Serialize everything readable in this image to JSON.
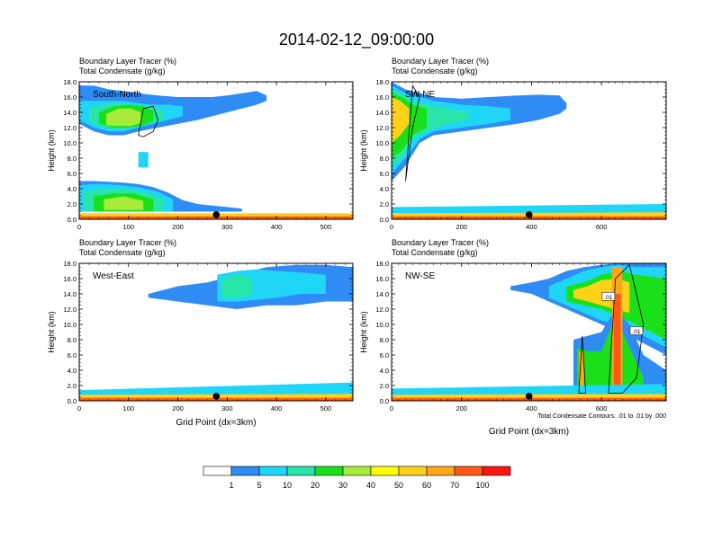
{
  "page_title": "2014-02-12_09:00:00",
  "panel_title_line1": "Boundary Layer Tracer   (%)",
  "panel_title_line2": "Total Condensate   (g/kg)",
  "y_axis_title": "Height (km)",
  "x_axis_title": "Grid Point (dx=3km)",
  "footnote": "Total Condensate Contours: .01 to .01 by .000",
  "y_ticks": [
    "0.0",
    "2.0",
    "4.0",
    "6.0",
    "8.0",
    "10.0",
    "12.0",
    "14.0",
    "16.0",
    "18.0"
  ],
  "colorbar": {
    "colors": [
      "#ffffff",
      "#2f8cf5",
      "#1fd6f6",
      "#27e6a8",
      "#19e019",
      "#a8ec3a",
      "#ffff00",
      "#ffd21a",
      "#ffa51a",
      "#ff5a14",
      "#ff1414"
    ],
    "labels": [
      "1",
      "5",
      "10",
      "20",
      "30",
      "40",
      "50",
      "60",
      "70",
      "100"
    ]
  },
  "chart_data": [
    {
      "type": "heatmap",
      "label": "South-North",
      "ylabel": "Height (km)",
      "ylim": [
        0,
        18
      ],
      "xlim": [
        0,
        555
      ],
      "x_ticks": [
        "0",
        "100",
        "200",
        "300",
        "400",
        "500"
      ],
      "marker_x": 278,
      "layers": [
        {
          "level": 1,
          "x": [
            0,
            30,
            60,
            90,
            120,
            160,
            200,
            240,
            270,
            300,
            330,
            360,
            380
          ],
          "y0": [
            12.5,
            11.5,
            11.0,
            11.0,
            11.5,
            12.0,
            12.5,
            13.0,
            13.5,
            14.0,
            14.5,
            15.0,
            15.5
          ],
          "y1": [
            17.5,
            17.5,
            17.0,
            16.8,
            16.5,
            16.2,
            16.0,
            16.0,
            16.0,
            16.2,
            16.5,
            16.8,
            16.2
          ]
        },
        {
          "level": 5,
          "x": [
            0,
            30,
            60,
            90,
            120,
            150,
            180,
            210
          ],
          "y0": [
            13.0,
            12.0,
            11.5,
            11.5,
            12.0,
            12.5,
            13.0,
            13.5
          ],
          "y1": [
            15.5,
            15.5,
            15.5,
            15.5,
            15.2,
            15.0,
            15.0,
            14.8
          ]
        },
        {
          "level": 10,
          "x": [
            20,
            50,
            80,
            110,
            140,
            170
          ],
          "y0": [
            12.8,
            12.0,
            11.8,
            12.0,
            12.5,
            13.0
          ],
          "y1": [
            14.5,
            15.0,
            15.2,
            15.0,
            14.8,
            14.2
          ]
        },
        {
          "level": 20,
          "x": [
            40,
            70,
            100,
            130,
            150
          ],
          "y0": [
            12.5,
            12.0,
            12.0,
            12.3,
            12.8
          ],
          "y1": [
            14.0,
            14.8,
            15.0,
            14.8,
            14.2
          ]
        },
        {
          "level": 30,
          "x": [
            55,
            80,
            105,
            125
          ],
          "y0": [
            12.3,
            12.2,
            12.2,
            12.6
          ],
          "y1": [
            13.8,
            14.5,
            14.5,
            14.0
          ]
        },
        {
          "level": 1,
          "x": [
            0,
            30,
            60,
            90,
            120,
            150,
            180,
            210,
            240,
            270,
            300,
            330
          ],
          "y0": [
            1.0,
            1.0,
            1.0,
            1.0,
            1.0,
            1.0,
            1.0,
            1.0,
            1.0,
            1.0,
            1.0,
            1.0
          ],
          "y1": [
            5.0,
            5.0,
            4.9,
            4.8,
            4.6,
            4.2,
            3.5,
            2.5,
            2.0,
            1.8,
            1.6,
            1.4
          ]
        },
        {
          "level": 5,
          "x": [
            0,
            40,
            80,
            120,
            160,
            190
          ],
          "y0": [
            1.0,
            1.0,
            1.0,
            1.0,
            1.0,
            1.0
          ],
          "y1": [
            4.5,
            4.6,
            4.5,
            4.2,
            3.6,
            2.6
          ]
        },
        {
          "level": 10,
          "x": [
            10,
            50,
            90,
            130,
            170
          ],
          "y0": [
            1.0,
            1.0,
            1.0,
            1.0,
            1.0
          ],
          "y1": [
            3.6,
            4.0,
            4.0,
            3.6,
            2.6
          ]
        },
        {
          "level": 20,
          "x": [
            30,
            70,
            110,
            150
          ],
          "y0": [
            1.0,
            1.0,
            1.0,
            1.0
          ],
          "y1": [
            3.0,
            3.4,
            3.4,
            2.6
          ]
        },
        {
          "level": 30,
          "x": [
            50,
            90,
            130
          ],
          "y0": [
            1.2,
            1.2,
            1.2
          ],
          "y1": [
            2.6,
            3.0,
            2.4
          ]
        },
        {
          "level": 5,
          "x": [
            120,
            140
          ],
          "y0": [
            6.8,
            6.8
          ],
          "y1": [
            8.8,
            8.8
          ]
        },
        {
          "level": 50,
          "x": [
            0,
            555
          ],
          "y0": [
            0.0,
            0.0
          ],
          "y1": [
            0.8,
            0.8
          ]
        },
        {
          "level": 70,
          "x": [
            0,
            555
          ],
          "y0": [
            0.0,
            0.0
          ],
          "y1": [
            0.4,
            0.4
          ]
        }
      ],
      "contours": [
        {
          "x": [
            120,
            130,
            150,
            160,
            150,
            130,
            120
          ],
          "y": [
            11.0,
            14.5,
            14.8,
            13.0,
            11.5,
            10.8,
            11.0
          ]
        }
      ]
    },
    {
      "type": "heatmap",
      "label": "SW-NE",
      "ylabel": "Height (km)",
      "ylim": [
        0,
        18
      ],
      "xlim": [
        0,
        785
      ],
      "x_ticks": [
        "0",
        "200",
        "400",
        "600"
      ],
      "marker_x": 393,
      "layers": [
        {
          "level": 1,
          "x": [
            0,
            40,
            80,
            120,
            200,
            280,
            360,
            420,
            480,
            500
          ],
          "y0": [
            5.0,
            7.0,
            10.0,
            11.0,
            11.5,
            12.0,
            12.5,
            13.0,
            13.8,
            14.5
          ],
          "y1": [
            18.0,
            17.0,
            16.5,
            16.0,
            15.8,
            16.0,
            16.2,
            16.3,
            16.2,
            15.2
          ]
        },
        {
          "level": 5,
          "x": [
            0,
            40,
            80,
            120,
            200,
            280,
            340
          ],
          "y0": [
            6.0,
            8.0,
            10.5,
            11.5,
            12.0,
            12.5,
            13.0
          ],
          "y1": [
            17.5,
            16.5,
            16.0,
            15.5,
            15.0,
            14.8,
            14.5
          ]
        },
        {
          "level": 10,
          "x": [
            0,
            30,
            60,
            100,
            160,
            220
          ],
          "y0": [
            7.0,
            8.0,
            10.5,
            11.5,
            12.5,
            13.0
          ],
          "y1": [
            17.0,
            16.5,
            15.5,
            15.0,
            14.5,
            14.0
          ]
        },
        {
          "level": 20,
          "x": [
            0,
            30,
            60,
            100
          ],
          "y0": [
            8.0,
            9.0,
            11.0,
            12.0
          ],
          "y1": [
            16.5,
            16.0,
            15.0,
            14.5
          ]
        },
        {
          "level": 50,
          "x": [
            0,
            25,
            50
          ],
          "y0": [
            10.0,
            11.0,
            12.5
          ],
          "y1": [
            16.0,
            15.5,
            14.5
          ]
        },
        {
          "level": 5,
          "x": [
            0,
            785
          ],
          "y0": [
            0.0,
            0.0
          ],
          "y1": [
            1.6,
            2.0
          ]
        },
        {
          "level": 50,
          "x": [
            0,
            785
          ],
          "y0": [
            0.0,
            0.0
          ],
          "y1": [
            0.8,
            0.9
          ]
        },
        {
          "level": 70,
          "x": [
            0,
            785
          ],
          "y0": [
            0.0,
            0.0
          ],
          "y1": [
            0.4,
            0.4
          ]
        }
      ],
      "contours": [
        {
          "x": [
            40,
            60,
            80,
            60,
            40
          ],
          "y": [
            5.0,
            12.0,
            16.0,
            17.5,
            5.0
          ]
        }
      ]
    },
    {
      "type": "heatmap",
      "label": "West-East",
      "ylabel": "Height (km)",
      "ylim": [
        0,
        18
      ],
      "xlim": [
        0,
        555
      ],
      "x_ticks": [
        "0",
        "100",
        "200",
        "300",
        "400",
        "500"
      ],
      "marker_x": 278,
      "layers": [
        {
          "level": 1,
          "x": [
            140,
            200,
            260,
            320,
            380,
            440,
            500,
            555
          ],
          "y0": [
            13.5,
            13.0,
            12.5,
            12.0,
            12.5,
            12.5,
            13.0,
            13.0
          ],
          "y1": [
            14.0,
            15.0,
            15.5,
            16.5,
            17.5,
            17.8,
            17.8,
            17.5
          ]
        },
        {
          "level": 5,
          "x": [
            280,
            320,
            360,
            400,
            450,
            500
          ],
          "y0": [
            13.0,
            13.0,
            13.2,
            13.5,
            14.0,
            14.0
          ],
          "y1": [
            16.5,
            17.0,
            17.2,
            17.0,
            16.8,
            16.5
          ]
        },
        {
          "level": 10,
          "x": [
            290,
            320,
            350
          ],
          "y0": [
            13.5,
            13.5,
            13.8
          ],
          "y1": [
            16.0,
            16.5,
            16.0
          ]
        },
        {
          "level": 5,
          "x": [
            0,
            555
          ],
          "y0": [
            0.0,
            0.0
          ],
          "y1": [
            1.4,
            2.4
          ]
        },
        {
          "level": 50,
          "x": [
            0,
            555
          ],
          "y0": [
            0.0,
            0.0
          ],
          "y1": [
            0.8,
            0.9
          ]
        },
        {
          "level": 70,
          "x": [
            0,
            555
          ],
          "y0": [
            0.0,
            0.0
          ],
          "y1": [
            0.4,
            0.4
          ]
        }
      ],
      "contours": []
    },
    {
      "type": "heatmap",
      "label": "NW-SE",
      "ylabel": "Height (km)",
      "ylim": [
        0,
        18
      ],
      "xlim": [
        0,
        785
      ],
      "x_ticks": [
        "0",
        "200",
        "400",
        "600"
      ],
      "marker_x": 393,
      "layers": [
        {
          "level": 1,
          "x": [
            340,
            400,
            450,
            500,
            550,
            600,
            650,
            700,
            785
          ],
          "y0": [
            14.5,
            14.0,
            13.0,
            12.0,
            11.0,
            10.0,
            9.0,
            8.0,
            6.0
          ],
          "y1": [
            15.0,
            15.5,
            16.0,
            17.0,
            17.5,
            17.8,
            18.0,
            18.0,
            18.0
          ]
        },
        {
          "level": 5,
          "x": [
            450,
            500,
            550,
            600,
            650,
            700,
            785
          ],
          "y0": [
            13.5,
            12.5,
            11.5,
            10.5,
            10.0,
            9.0,
            7.0
          ],
          "y1": [
            15.0,
            16.0,
            17.0,
            17.5,
            17.8,
            17.5,
            17.5
          ]
        },
        {
          "level": 20,
          "x": [
            500,
            550,
            600,
            650,
            700,
            785
          ],
          "y0": [
            13.0,
            12.5,
            12.0,
            11.0,
            10.0,
            8.0
          ],
          "y1": [
            15.0,
            15.5,
            16.5,
            17.0,
            16.5,
            16.0
          ]
        },
        {
          "level": 50,
          "x": [
            520,
            560,
            600,
            640,
            680
          ],
          "y0": [
            13.5,
            13.0,
            12.5,
            12.0,
            11.5
          ],
          "y1": [
            14.5,
            15.0,
            15.8,
            16.0,
            15.5
          ]
        },
        {
          "level": 1,
          "x": [
            520,
            560,
            600,
            640,
            680,
            720,
            785
          ],
          "y0": [
            1.0,
            1.0,
            1.0,
            1.0,
            1.0,
            1.0,
            1.0
          ],
          "y1": [
            8.0,
            8.5,
            9.0,
            12.0,
            10.0,
            6.0,
            4.0
          ]
        },
        {
          "level": 20,
          "x": [
            530,
            560,
            600,
            640,
            680,
            720
          ],
          "y0": [
            1.0,
            1.0,
            1.0,
            1.0,
            1.0,
            1.0
          ],
          "y1": [
            7.0,
            6.5,
            6.5,
            11.0,
            7.0,
            3.0
          ]
        },
        {
          "level": 60,
          "x": [
            535,
            550
          ],
          "y0": [
            1.0,
            1.0
          ],
          "y1": [
            6.5,
            6.5
          ]
        },
        {
          "level": 60,
          "x": [
            630,
            660
          ],
          "y0": [
            1.0,
            1.0
          ],
          "y1": [
            17.5,
            17.5
          ]
        },
        {
          "level": 70,
          "x": [
            635,
            655
          ],
          "y0": [
            1.0,
            1.0
          ],
          "y1": [
            14.0,
            14.0
          ]
        },
        {
          "level": 5,
          "x": [
            0,
            785
          ],
          "y0": [
            0.0,
            0.0
          ],
          "y1": [
            1.6,
            2.2
          ]
        },
        {
          "level": 50,
          "x": [
            0,
            785
          ],
          "y0": [
            0.0,
            0.0
          ],
          "y1": [
            0.8,
            0.9
          ]
        },
        {
          "level": 70,
          "x": [
            0,
            785
          ],
          "y0": [
            0.0,
            0.0
          ],
          "y1": [
            0.4,
            0.4
          ]
        }
      ],
      "contours": [
        {
          "x": [
            620,
            640,
            680,
            700,
            720,
            700,
            660,
            630,
            620
          ],
          "y": [
            1.0,
            16.0,
            17.8,
            14.0,
            10.0,
            3.0,
            1.0,
            1.0,
            1.0
          ]
        },
        {
          "x": [
            535,
            545,
            555,
            545,
            535
          ],
          "y": [
            1.0,
            8.5,
            1.0,
            1.0,
            1.0
          ]
        }
      ],
      "contour_labels": [
        {
          "x": 620,
          "y": 13.5,
          "text": ".01"
        },
        {
          "x": 700,
          "y": 9.0,
          "text": ".01"
        }
      ]
    }
  ]
}
